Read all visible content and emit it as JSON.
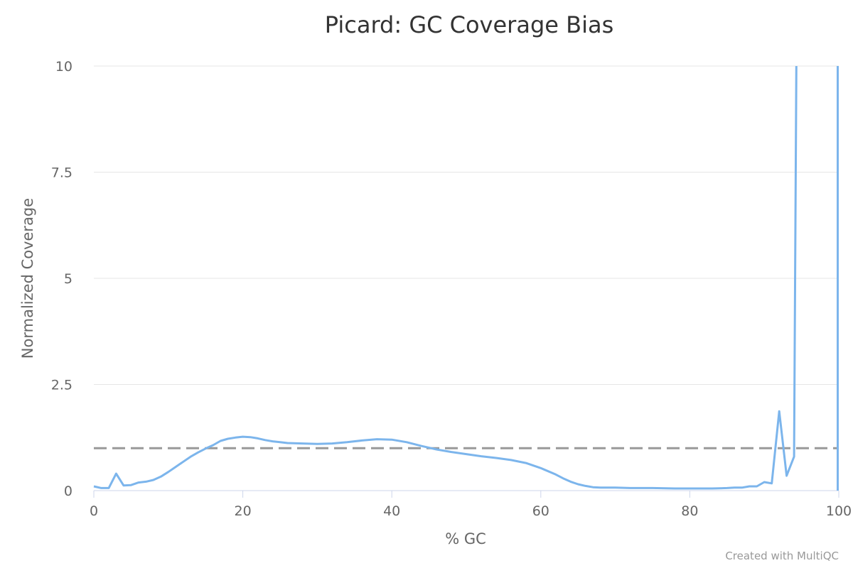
{
  "chart_data": {
    "type": "line",
    "title": "Picard: GC Coverage Bias",
    "xlabel": "% GC",
    "ylabel": "Normalized Coverage",
    "xlim": [
      0,
      100
    ],
    "ylim": [
      0,
      10
    ],
    "x_ticks": [
      "0",
      "20",
      "40",
      "60",
      "80",
      "100"
    ],
    "y_ticks": [
      "0",
      "2.5",
      "5",
      "7.5",
      "10"
    ],
    "grid": "horizontal",
    "reference_line": {
      "y": 1,
      "style": "dashed",
      "color": "#999999"
    },
    "series": [
      {
        "color": "#7cb5ec",
        "points": [
          [
            0,
            0.1
          ],
          [
            1,
            0.06
          ],
          [
            2,
            0.06
          ],
          [
            3,
            0.4
          ],
          [
            4,
            0.12
          ],
          [
            5,
            0.13
          ],
          [
            6,
            0.19
          ],
          [
            7,
            0.21
          ],
          [
            8,
            0.25
          ],
          [
            9,
            0.33
          ],
          [
            10,
            0.44
          ],
          [
            11,
            0.56
          ],
          [
            12,
            0.68
          ],
          [
            13,
            0.8
          ],
          [
            14,
            0.9
          ],
          [
            15,
            0.99
          ],
          [
            16,
            1.07
          ],
          [
            17,
            1.17
          ],
          [
            18,
            1.22
          ],
          [
            19,
            1.25
          ],
          [
            20,
            1.27
          ],
          [
            21,
            1.26
          ],
          [
            22,
            1.23
          ],
          [
            23,
            1.19
          ],
          [
            24,
            1.16
          ],
          [
            25,
            1.14
          ],
          [
            26,
            1.12
          ],
          [
            28,
            1.11
          ],
          [
            30,
            1.1
          ],
          [
            32,
            1.11
          ],
          [
            34,
            1.14
          ],
          [
            36,
            1.18
          ],
          [
            38,
            1.21
          ],
          [
            40,
            1.2
          ],
          [
            42,
            1.14
          ],
          [
            44,
            1.05
          ],
          [
            46,
            0.97
          ],
          [
            48,
            0.91
          ],
          [
            50,
            0.86
          ],
          [
            52,
            0.81
          ],
          [
            54,
            0.77
          ],
          [
            56,
            0.72
          ],
          [
            58,
            0.65
          ],
          [
            60,
            0.53
          ],
          [
            62,
            0.38
          ],
          [
            63,
            0.29
          ],
          [
            64,
            0.21
          ],
          [
            65,
            0.15
          ],
          [
            66,
            0.11
          ],
          [
            67,
            0.08
          ],
          [
            68,
            0.07
          ],
          [
            70,
            0.07
          ],
          [
            72,
            0.06
          ],
          [
            75,
            0.06
          ],
          [
            78,
            0.05
          ],
          [
            80,
            0.05
          ],
          [
            83,
            0.05
          ],
          [
            85,
            0.06
          ],
          [
            86,
            0.07
          ],
          [
            87,
            0.07
          ],
          [
            88,
            0.1
          ],
          [
            89,
            0.1
          ],
          [
            90,
            0.2
          ],
          [
            91,
            0.17
          ],
          [
            92,
            1.87
          ],
          [
            93,
            0.35
          ],
          [
            94,
            0.8
          ],
          [
            94.3,
            10
          ],
          [
            100,
            null
          ],
          [
            100.1,
            10
          ]
        ]
      }
    ]
  },
  "credits": "Created with MultiQC"
}
